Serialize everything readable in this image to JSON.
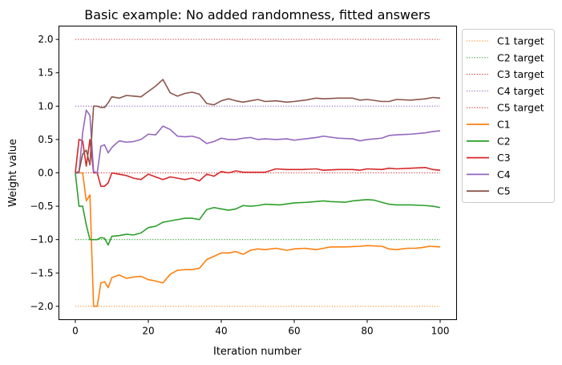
{
  "chart_data": {
    "type": "line",
    "title": "Basic example: No added randomness, fitted answers",
    "xlabel": "Iteration number",
    "ylabel": "Weight value",
    "xlim": [
      -4.5,
      104.5
    ],
    "ylim": [
      -2.2,
      2.2
    ],
    "xticks": [
      0,
      20,
      40,
      60,
      80,
      100
    ],
    "xtick_labels": [
      "0",
      "20",
      "40",
      "60",
      "80",
      "100"
    ],
    "yticks": [
      -2.0,
      -1.5,
      -1.0,
      -0.5,
      0.0,
      0.5,
      1.0,
      1.5,
      2.0
    ],
    "ytick_labels": [
      "−2.0",
      "−1.5",
      "−1.0",
      "−0.5",
      "0.0",
      "0.5",
      "1.0",
      "1.5",
      "2.0"
    ],
    "grid": false,
    "legend_placement": "outside-right",
    "target_series": [
      {
        "name": "C1 target",
        "color": "#ff7f0e",
        "y": -2.0
      },
      {
        "name": "C2 target",
        "color": "#2ca02c",
        "y": -1.0
      },
      {
        "name": "C3 target",
        "color": "#d62728",
        "y": 2.0
      },
      {
        "name": "C4 target",
        "color": "#9467bd",
        "y": 1.0
      },
      {
        "name": "C5 target",
        "color": "#d62728",
        "y": 0.0
      }
    ],
    "target_x_range": [
      0,
      100
    ],
    "series": [
      {
        "name": "C1",
        "color": "#ff7f0e",
        "points": [
          [
            0,
            0
          ],
          [
            1,
            0
          ],
          [
            2,
            0
          ],
          [
            3,
            -0.42
          ],
          [
            4,
            -0.33
          ],
          [
            5,
            -2.0
          ],
          [
            6,
            -2.0
          ],
          [
            7,
            -1.65
          ],
          [
            8,
            -1.63
          ],
          [
            9,
            -1.72
          ],
          [
            10,
            -1.57
          ],
          [
            12,
            -1.53
          ],
          [
            14,
            -1.58
          ],
          [
            16,
            -1.56
          ],
          [
            18,
            -1.55
          ],
          [
            20,
            -1.6
          ],
          [
            22,
            -1.62
          ],
          [
            24,
            -1.65
          ],
          [
            26,
            -1.52
          ],
          [
            28,
            -1.46
          ],
          [
            30,
            -1.45
          ],
          [
            32,
            -1.45
          ],
          [
            34,
            -1.43
          ],
          [
            36,
            -1.3
          ],
          [
            38,
            -1.25
          ],
          [
            40,
            -1.2
          ],
          [
            42,
            -1.2
          ],
          [
            44,
            -1.18
          ],
          [
            46,
            -1.22
          ],
          [
            48,
            -1.16
          ],
          [
            50,
            -1.14
          ],
          [
            52,
            -1.15
          ],
          [
            55,
            -1.13
          ],
          [
            58,
            -1.16
          ],
          [
            60,
            -1.14
          ],
          [
            63,
            -1.13
          ],
          [
            66,
            -1.15
          ],
          [
            68,
            -1.13
          ],
          [
            70,
            -1.11
          ],
          [
            74,
            -1.11
          ],
          [
            78,
            -1.1
          ],
          [
            80,
            -1.09
          ],
          [
            84,
            -1.1
          ],
          [
            86,
            -1.14
          ],
          [
            88,
            -1.15
          ],
          [
            91,
            -1.13
          ],
          [
            93,
            -1.13
          ],
          [
            95,
            -1.12
          ],
          [
            97,
            -1.1
          ],
          [
            100,
            -1.11
          ]
        ]
      },
      {
        "name": "C2",
        "color": "#2ca02c",
        "points": [
          [
            0,
            0
          ],
          [
            1,
            -0.5
          ],
          [
            2,
            -0.5
          ],
          [
            3,
            -0.78
          ],
          [
            4,
            -1.0
          ],
          [
            5,
            -1.0
          ],
          [
            6,
            -1.0
          ],
          [
            7,
            -0.97
          ],
          [
            8,
            -0.98
          ],
          [
            9,
            -1.08
          ],
          [
            10,
            -0.95
          ],
          [
            12,
            -0.94
          ],
          [
            14,
            -0.92
          ],
          [
            16,
            -0.93
          ],
          [
            18,
            -0.9
          ],
          [
            20,
            -0.82
          ],
          [
            22,
            -0.8
          ],
          [
            24,
            -0.74
          ],
          [
            26,
            -0.72
          ],
          [
            28,
            -0.7
          ],
          [
            30,
            -0.68
          ],
          [
            32,
            -0.68
          ],
          [
            34,
            -0.7
          ],
          [
            36,
            -0.55
          ],
          [
            38,
            -0.52
          ],
          [
            40,
            -0.54
          ],
          [
            42,
            -0.56
          ],
          [
            44,
            -0.54
          ],
          [
            46,
            -0.49
          ],
          [
            48,
            -0.5
          ],
          [
            50,
            -0.49
          ],
          [
            52,
            -0.47
          ],
          [
            56,
            -0.48
          ],
          [
            60,
            -0.45
          ],
          [
            64,
            -0.44
          ],
          [
            68,
            -0.42
          ],
          [
            70,
            -0.43
          ],
          [
            74,
            -0.44
          ],
          [
            76,
            -0.42
          ],
          [
            80,
            -0.4
          ],
          [
            82,
            -0.41
          ],
          [
            84,
            -0.44
          ],
          [
            86,
            -0.47
          ],
          [
            88,
            -0.48
          ],
          [
            92,
            -0.48
          ],
          [
            96,
            -0.49
          ],
          [
            98,
            -0.5
          ],
          [
            100,
            -0.52
          ]
        ]
      },
      {
        "name": "C3",
        "color": "#d62728",
        "points": [
          [
            0,
            0
          ],
          [
            1,
            0.5
          ],
          [
            2,
            0.48
          ],
          [
            3,
            0.1
          ],
          [
            4,
            0.5
          ],
          [
            5,
            0.0
          ],
          [
            6,
            0.0
          ],
          [
            7,
            -0.2
          ],
          [
            8,
            -0.2
          ],
          [
            9,
            -0.15
          ],
          [
            10,
            0.0
          ],
          [
            12,
            -0.02
          ],
          [
            14,
            -0.04
          ],
          [
            16,
            -0.08
          ],
          [
            18,
            -0.1
          ],
          [
            20,
            -0.02
          ],
          [
            22,
            -0.06
          ],
          [
            24,
            -0.1
          ],
          [
            26,
            -0.06
          ],
          [
            28,
            -0.08
          ],
          [
            30,
            -0.1
          ],
          [
            32,
            -0.08
          ],
          [
            34,
            -0.12
          ],
          [
            36,
            -0.02
          ],
          [
            38,
            -0.05
          ],
          [
            40,
            0.02
          ],
          [
            42,
            0.0
          ],
          [
            44,
            0.03
          ],
          [
            46,
            0.01
          ],
          [
            48,
            0.01
          ],
          [
            50,
            0.01
          ],
          [
            52,
            0.01
          ],
          [
            55,
            0.06
          ],
          [
            58,
            0.05
          ],
          [
            62,
            0.05
          ],
          [
            66,
            0.06
          ],
          [
            68,
            0.04
          ],
          [
            72,
            0.05
          ],
          [
            76,
            0.05
          ],
          [
            78,
            0.04
          ],
          [
            80,
            0.06
          ],
          [
            84,
            0.05
          ],
          [
            86,
            0.07
          ],
          [
            88,
            0.06
          ],
          [
            92,
            0.07
          ],
          [
            96,
            0.08
          ],
          [
            98,
            0.05
          ],
          [
            100,
            0.04
          ]
        ]
      },
      {
        "name": "C4",
        "color": "#9467bd",
        "points": [
          [
            0,
            0
          ],
          [
            1,
            0.0
          ],
          [
            2,
            0.6
          ],
          [
            3,
            0.94
          ],
          [
            4,
            0.86
          ],
          [
            5,
            0.02
          ],
          [
            6,
            0.0
          ],
          [
            7,
            0.4
          ],
          [
            8,
            0.42
          ],
          [
            9,
            0.3
          ],
          [
            10,
            0.38
          ],
          [
            12,
            0.48
          ],
          [
            14,
            0.46
          ],
          [
            16,
            0.47
          ],
          [
            18,
            0.5
          ],
          [
            20,
            0.58
          ],
          [
            22,
            0.57
          ],
          [
            24,
            0.7
          ],
          [
            26,
            0.65
          ],
          [
            28,
            0.55
          ],
          [
            30,
            0.54
          ],
          [
            32,
            0.55
          ],
          [
            34,
            0.52
          ],
          [
            36,
            0.44
          ],
          [
            38,
            0.47
          ],
          [
            40,
            0.52
          ],
          [
            42,
            0.5
          ],
          [
            44,
            0.5
          ],
          [
            46,
            0.52
          ],
          [
            48,
            0.53
          ],
          [
            50,
            0.5
          ],
          [
            52,
            0.51
          ],
          [
            55,
            0.5
          ],
          [
            58,
            0.51
          ],
          [
            60,
            0.49
          ],
          [
            63,
            0.51
          ],
          [
            66,
            0.53
          ],
          [
            68,
            0.55
          ],
          [
            72,
            0.52
          ],
          [
            76,
            0.51
          ],
          [
            78,
            0.48
          ],
          [
            80,
            0.5
          ],
          [
            84,
            0.52
          ],
          [
            86,
            0.56
          ],
          [
            88,
            0.57
          ],
          [
            92,
            0.58
          ],
          [
            96,
            0.6
          ],
          [
            98,
            0.62
          ],
          [
            100,
            0.63
          ]
        ]
      },
      {
        "name": "C5",
        "color": "#8c564b",
        "points": [
          [
            0,
            0
          ],
          [
            1,
            0.02
          ],
          [
            2,
            0.28
          ],
          [
            3,
            0.34
          ],
          [
            4,
            0.12
          ],
          [
            5,
            1.0
          ],
          [
            6,
            1.0
          ],
          [
            7,
            0.98
          ],
          [
            8,
            0.98
          ],
          [
            9,
            1.05
          ],
          [
            10,
            1.14
          ],
          [
            12,
            1.12
          ],
          [
            14,
            1.16
          ],
          [
            16,
            1.15
          ],
          [
            18,
            1.14
          ],
          [
            20,
            1.22
          ],
          [
            22,
            1.3
          ],
          [
            24,
            1.4
          ],
          [
            26,
            1.2
          ],
          [
            28,
            1.15
          ],
          [
            30,
            1.19
          ],
          [
            32,
            1.21
          ],
          [
            34,
            1.18
          ],
          [
            36,
            1.04
          ],
          [
            38,
            1.02
          ],
          [
            40,
            1.08
          ],
          [
            42,
            1.11
          ],
          [
            44,
            1.08
          ],
          [
            46,
            1.06
          ],
          [
            48,
            1.08
          ],
          [
            50,
            1.1
          ],
          [
            52,
            1.07
          ],
          [
            55,
            1.08
          ],
          [
            58,
            1.06
          ],
          [
            60,
            1.07
          ],
          [
            63,
            1.09
          ],
          [
            66,
            1.12
          ],
          [
            68,
            1.11
          ],
          [
            72,
            1.12
          ],
          [
            76,
            1.12
          ],
          [
            78,
            1.09
          ],
          [
            80,
            1.1
          ],
          [
            84,
            1.07
          ],
          [
            86,
            1.07
          ],
          [
            88,
            1.1
          ],
          [
            92,
            1.09
          ],
          [
            96,
            1.11
          ],
          [
            98,
            1.13
          ],
          [
            100,
            1.12
          ]
        ]
      }
    ]
  }
}
